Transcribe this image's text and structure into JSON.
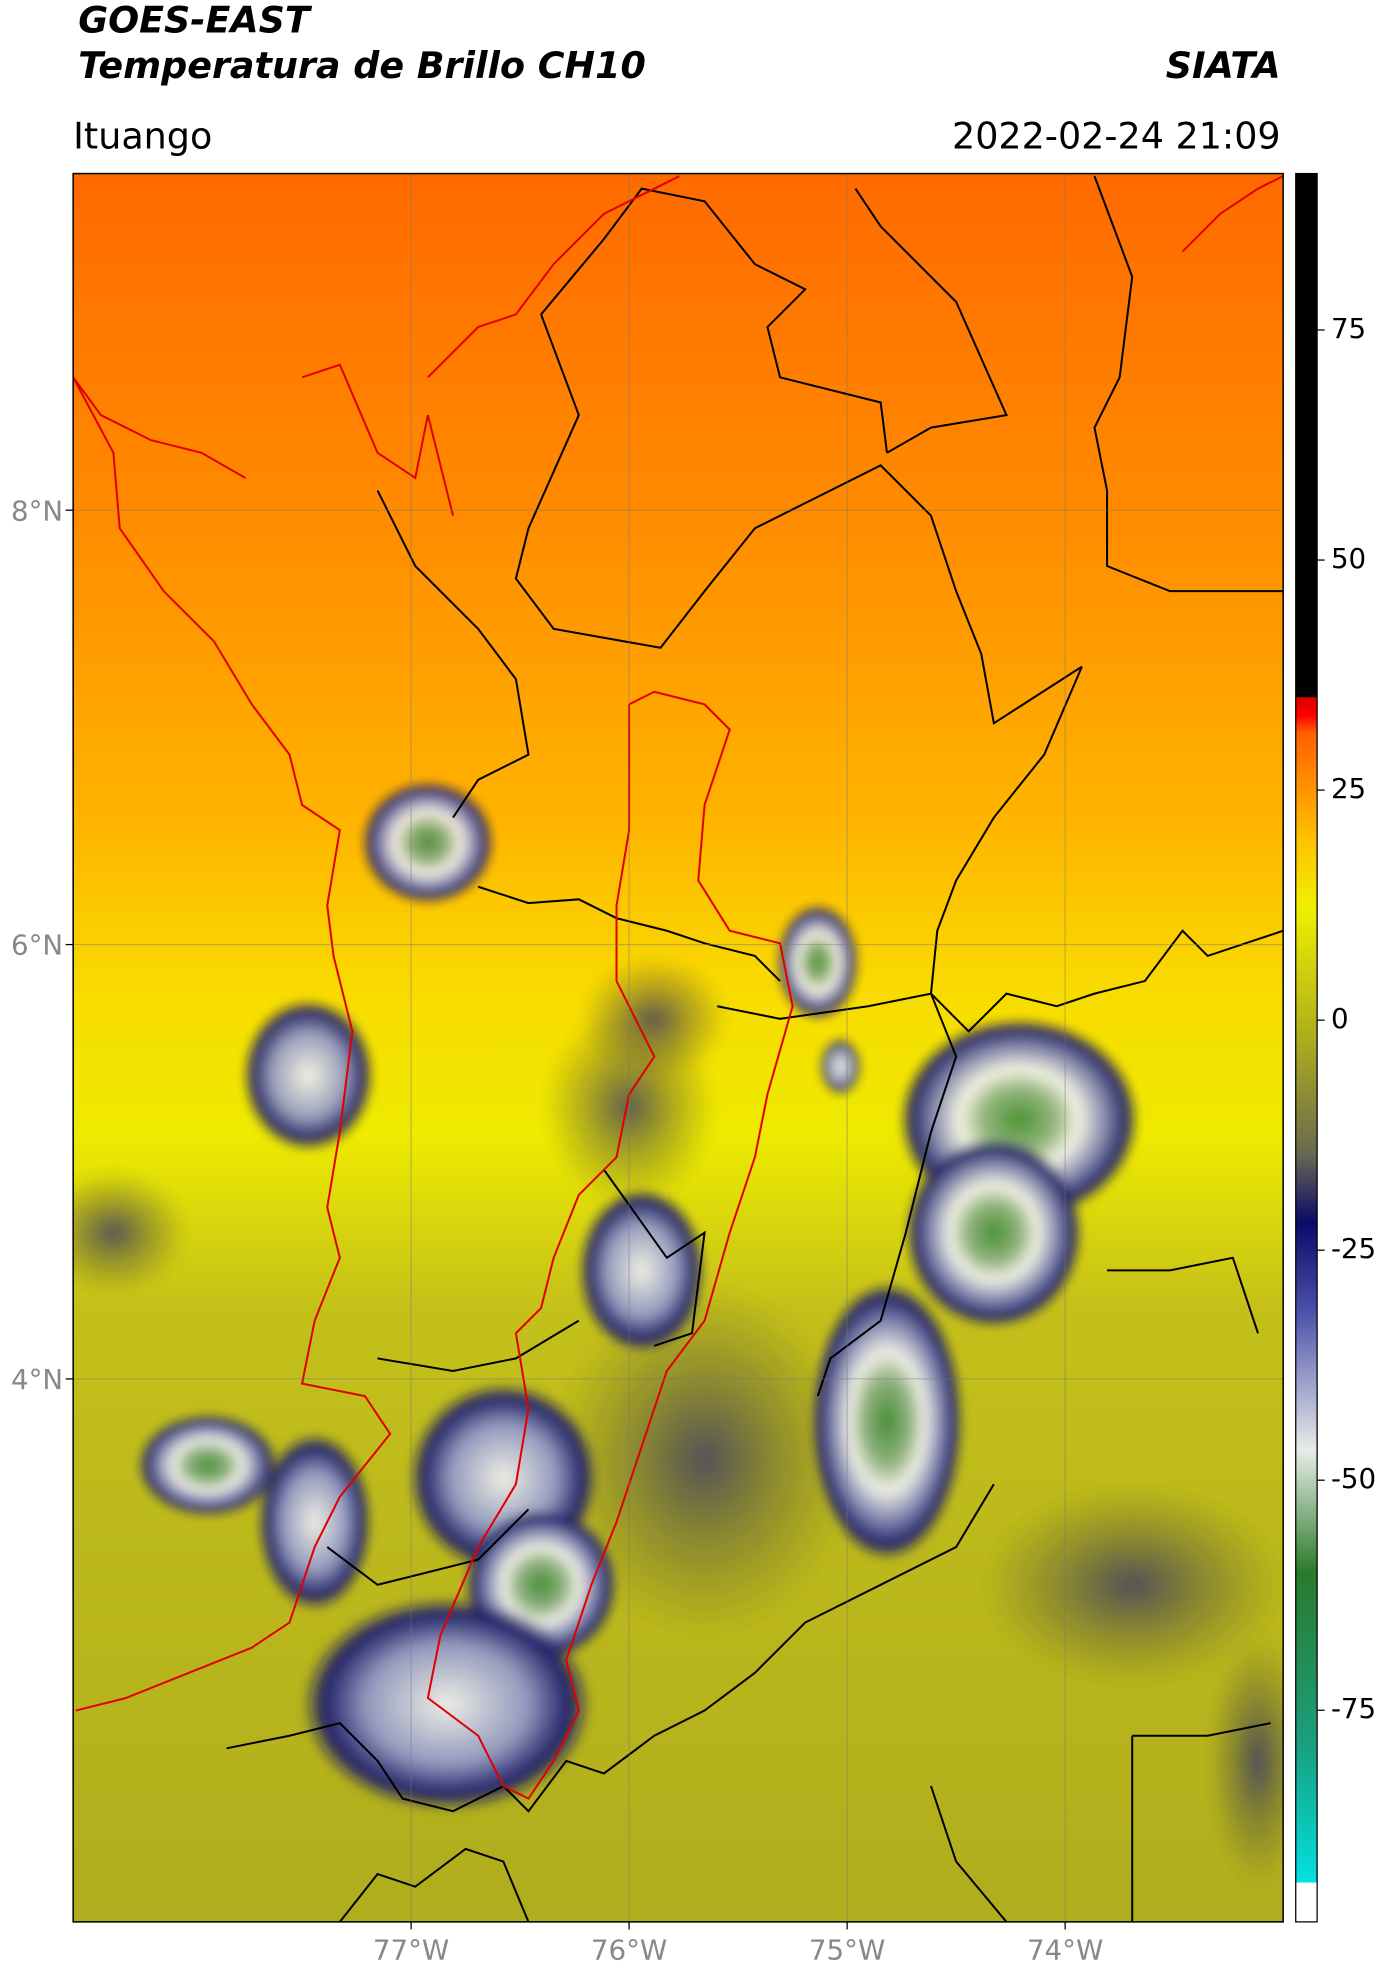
{
  "header": {
    "title": "GOES-EAST",
    "subtitle": "Temperatura de Brillo CH10",
    "source": "SIATA",
    "location": "Ituango",
    "datetime": "2022-02-24 21:09"
  },
  "map": {
    "xlim": [
      -78.55,
      -73.0
    ],
    "ylim": [
      1.5,
      9.55
    ],
    "xticks": [
      {
        "value": -77,
        "label": "77°W"
      },
      {
        "value": -76,
        "label": "76°W"
      },
      {
        "value": -75,
        "label": "75°W"
      },
      {
        "value": -74,
        "label": "74°W"
      }
    ],
    "yticks": [
      {
        "value": 8,
        "label": "8°N"
      },
      {
        "value": 6,
        "label": "6°N"
      },
      {
        "value": 4,
        "label": "4°N"
      }
    ],
    "grid": true
  },
  "colorbar": {
    "lim": [
      -98,
      92
    ],
    "ticks": [
      75,
      50,
      25,
      0,
      -25,
      -50,
      -75
    ]
  }
}
